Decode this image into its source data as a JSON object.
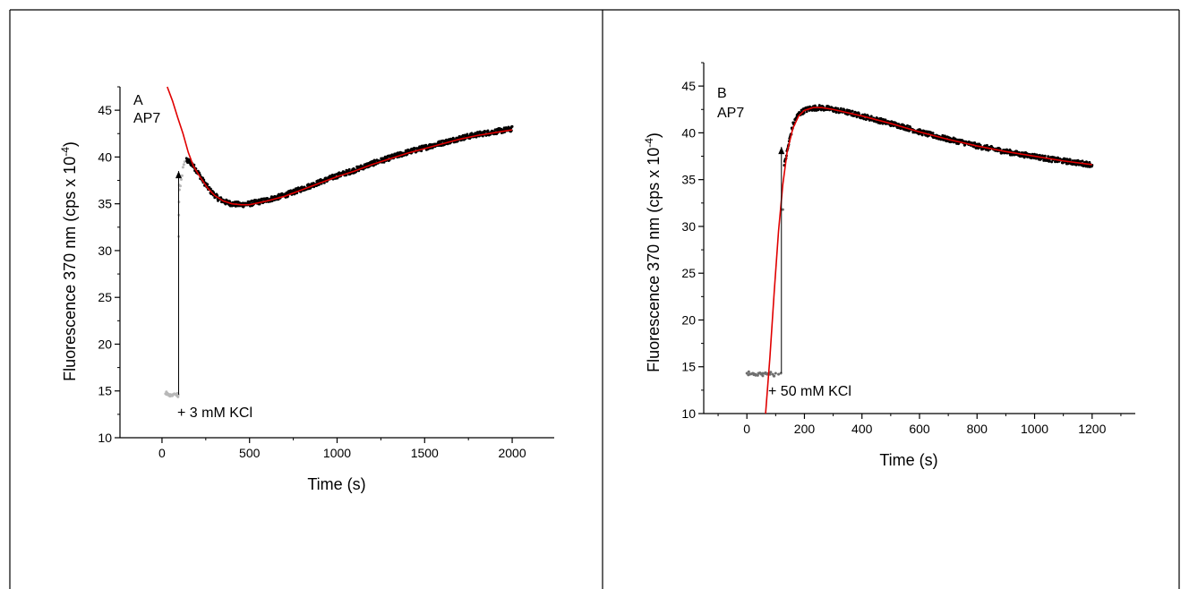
{
  "chart_data": [
    {
      "type": "scatter",
      "panel_label": "A",
      "sample_label": "AP7",
      "xlabel": "Time (s)",
      "ylabel_main": "Fluorescence 370 nm (cps x 10",
      "ylabel_exp": "-4",
      "ylabel_close": ")",
      "xlim": [
        -240,
        2240
      ],
      "ylim": [
        10,
        47.5
      ],
      "x_ticks": [
        0,
        500,
        1000,
        1500,
        2000
      ],
      "y_ticks": [
        10,
        15,
        20,
        25,
        30,
        35,
        40,
        45
      ],
      "annotation": "+ 3 mM KCl",
      "arrow": {
        "x": 95,
        "y_from": 14.6,
        "y_to": 38.5
      },
      "colors": {
        "data": "#000000",
        "pre_data": "#b8b8b8",
        "fit": "#e00000"
      },
      "series": [
        {
          "role": "pre-addition",
          "points": [
            [
              20,
              14.7
            ],
            [
              30,
              14.6
            ],
            [
              40,
              14.5
            ],
            [
              50,
              14.6
            ],
            [
              60,
              14.5
            ],
            [
              70,
              14.7
            ],
            [
              80,
              14.6
            ],
            [
              85,
              14.5
            ],
            [
              90,
              14.6
            ],
            [
              95,
              31.5
            ],
            [
              96,
              33.8
            ],
            [
              97,
              35.2
            ],
            [
              98,
              37.0
            ],
            [
              100,
              36.5
            ],
            [
              105,
              36.9
            ],
            [
              110,
              37.6
            ],
            [
              115,
              38.0
            ],
            [
              120,
              38.9
            ],
            [
              125,
              39.2
            ],
            [
              130,
              39.5
            ]
          ]
        },
        {
          "role": "measured",
          "points": [
            [
              140,
              39.6
            ],
            [
              160,
              39.5
            ],
            [
              180,
              39.0
            ],
            [
              200,
              38.5
            ],
            [
              240,
              37.3
            ],
            [
              280,
              36.3
            ],
            [
              320,
              35.6
            ],
            [
              360,
              35.2
            ],
            [
              400,
              35.0
            ],
            [
              450,
              34.9
            ],
            [
              500,
              35.0
            ],
            [
              550,
              35.2
            ],
            [
              600,
              35.4
            ],
            [
              700,
              35.9
            ],
            [
              800,
              36.6
            ],
            [
              900,
              37.3
            ],
            [
              1000,
              38.0
            ],
            [
              1100,
              38.6
            ],
            [
              1200,
              39.3
            ],
            [
              1300,
              39.9
            ],
            [
              1400,
              40.5
            ],
            [
              1500,
              41.0
            ],
            [
              1600,
              41.5
            ],
            [
              1700,
              42.0
            ],
            [
              1800,
              42.4
            ],
            [
              1900,
              42.7
            ],
            [
              2000,
              43.0
            ]
          ]
        },
        {
          "role": "fit",
          "points": [
            [
              30,
              47.5
            ],
            [
              60,
              46.0
            ],
            [
              90,
              44.2
            ],
            [
              120,
              42.5
            ],
            [
              150,
              40.5
            ],
            [
              180,
              39.0
            ],
            [
              220,
              37.8
            ],
            [
              260,
              36.7
            ],
            [
              300,
              35.9
            ],
            [
              350,
              35.3
            ],
            [
              400,
              35.0
            ],
            [
              450,
              34.9
            ],
            [
              500,
              34.9
            ],
            [
              550,
              35.1
            ],
            [
              600,
              35.3
            ],
            [
              700,
              35.8
            ],
            [
              800,
              36.5
            ],
            [
              900,
              37.2
            ],
            [
              1000,
              37.9
            ],
            [
              1100,
              38.5
            ],
            [
              1200,
              39.2
            ],
            [
              1300,
              39.8
            ],
            [
              1400,
              40.4
            ],
            [
              1500,
              40.9
            ],
            [
              1600,
              41.4
            ],
            [
              1700,
              41.9
            ],
            [
              1800,
              42.3
            ],
            [
              1900,
              42.6
            ],
            [
              2000,
              42.9
            ]
          ]
        }
      ]
    },
    {
      "type": "scatter",
      "panel_label": "B",
      "sample_label": "AP7",
      "xlabel": "Time (s)",
      "ylabel_main": "Fluorescence 370 nm (cps x 10",
      "ylabel_exp": "-4",
      "ylabel_close": ")",
      "xlim": [
        -150,
        1350
      ],
      "ylim": [
        10,
        47.5
      ],
      "x_ticks": [
        0,
        200,
        400,
        600,
        800,
        1000,
        1200
      ],
      "y_ticks": [
        10,
        15,
        20,
        25,
        30,
        35,
        40,
        45
      ],
      "annotation": "+ 50 mM KCl",
      "arrow": {
        "x": 120,
        "y_from": 14.3,
        "y_to": 38.5
      },
      "colors": {
        "data": "#000000",
        "pre_data": "#6e6e6e",
        "fit": "#e00000"
      },
      "series": [
        {
          "role": "pre-addition",
          "points": [
            [
              0,
              14.3
            ],
            [
              10,
              14.2
            ],
            [
              20,
              14.3
            ],
            [
              30,
              14.2
            ],
            [
              40,
              14.3
            ],
            [
              50,
              14.2
            ],
            [
              60,
              14.3
            ],
            [
              70,
              14.2
            ],
            [
              80,
              14.3
            ],
            [
              90,
              14.2
            ],
            [
              100,
              14.3
            ],
            [
              110,
              14.2
            ],
            [
              118,
              14.3
            ],
            [
              125,
              31.8
            ]
          ]
        },
        {
          "role": "measured",
          "points": [
            [
              130,
              36.5
            ],
            [
              140,
              38.0
            ],
            [
              150,
              39.5
            ],
            [
              160,
              40.8
            ],
            [
              170,
              41.5
            ],
            [
              180,
              42.0
            ],
            [
              200,
              42.4
            ],
            [
              220,
              42.6
            ],
            [
              250,
              42.7
            ],
            [
              280,
              42.6
            ],
            [
              300,
              42.5
            ],
            [
              350,
              42.2
            ],
            [
              400,
              41.8
            ],
            [
              450,
              41.4
            ],
            [
              500,
              41.0
            ],
            [
              550,
              40.6
            ],
            [
              600,
              40.1
            ],
            [
              650,
              39.7
            ],
            [
              700,
              39.3
            ],
            [
              750,
              39.0
            ],
            [
              800,
              38.6
            ],
            [
              850,
              38.3
            ],
            [
              900,
              38.0
            ],
            [
              950,
              37.7
            ],
            [
              1000,
              37.5
            ],
            [
              1050,
              37.2
            ],
            [
              1100,
              37.0
            ],
            [
              1150,
              36.8
            ],
            [
              1200,
              36.6
            ]
          ]
        },
        {
          "role": "fit",
          "points": [
            [
              65,
              10.0
            ],
            [
              80,
              16.0
            ],
            [
              95,
              23.0
            ],
            [
              110,
              29.5
            ],
            [
              125,
              34.5
            ],
            [
              140,
              38.0
            ],
            [
              160,
              40.5
            ],
            [
              180,
              41.8
            ],
            [
              200,
              42.4
            ],
            [
              230,
              42.7
            ],
            [
              260,
              42.7
            ],
            [
              300,
              42.5
            ],
            [
              400,
              41.8
            ],
            [
              500,
              41.0
            ],
            [
              600,
              40.1
            ],
            [
              700,
              39.3
            ],
            [
              800,
              38.6
            ],
            [
              900,
              38.0
            ],
            [
              1000,
              37.5
            ],
            [
              1100,
              37.0
            ],
            [
              1200,
              36.6
            ]
          ]
        }
      ]
    }
  ]
}
